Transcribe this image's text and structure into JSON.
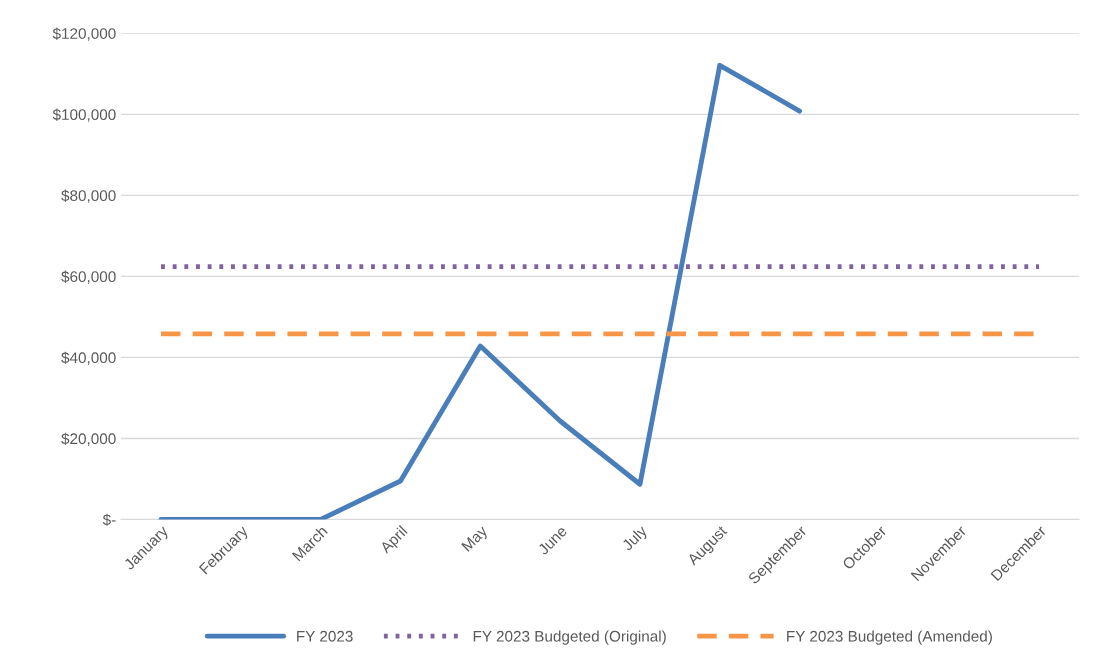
{
  "chart_data": {
    "type": "line",
    "categories": [
      "January",
      "February",
      "March",
      "April",
      "May",
      "June",
      "July",
      "August",
      "September",
      "October",
      "November",
      "December"
    ],
    "series": [
      {
        "name": "FY 2023",
        "color": "#4a7ebb",
        "line_style": "solid",
        "values": [
          0,
          0,
          0,
          9500,
          42800,
          24300,
          8700,
          112100,
          100800,
          null,
          null,
          null
        ]
      },
      {
        "name": "FY 2023 Budgeted (Original)",
        "color": "#8064a2",
        "line_style": "dotted",
        "values": [
          62400,
          62400,
          62400,
          62400,
          62400,
          62400,
          62400,
          62400,
          62400,
          62400,
          62400,
          62400
        ]
      },
      {
        "name": "FY 2023 Budgeted (Amended)",
        "color": "#f79646",
        "line_style": "dashed",
        "values": [
          45800,
          45800,
          45800,
          45800,
          45800,
          45800,
          45800,
          45800,
          45800,
          45800,
          45800,
          45800
        ]
      }
    ],
    "ylim": [
      0,
      120000
    ],
    "yticks": [
      {
        "value": 0,
        "label": "$-"
      },
      {
        "value": 20000,
        "label": "$20,000"
      },
      {
        "value": 40000,
        "label": "$40,000"
      },
      {
        "value": 60000,
        "label": "$60,000"
      },
      {
        "value": 80000,
        "label": "$80,000"
      },
      {
        "value": 100000,
        "label": "$100,000"
      },
      {
        "value": 120000,
        "label": "$120,000"
      }
    ],
    "grid": "y",
    "legend": "bottom",
    "marker": "none"
  }
}
